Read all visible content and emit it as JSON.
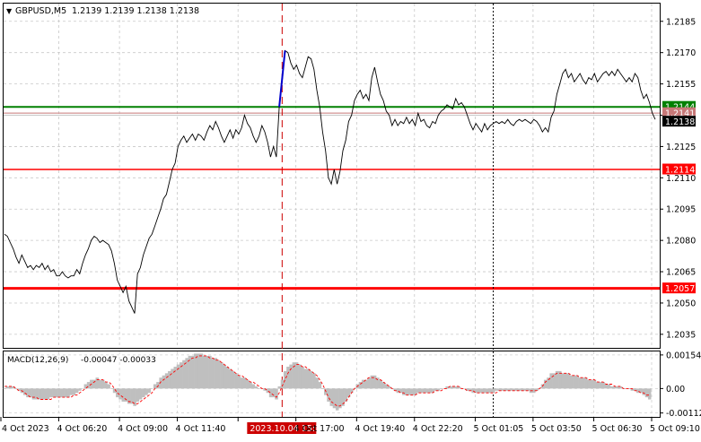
{
  "header": {
    "symbol": "GBPUSD,M5",
    "ohlc": "1.2139 1.2139 1.2138 1.2138"
  },
  "macd_header": {
    "label": "MACD(12,26,9)",
    "values": "-0.00047 -0.00033"
  },
  "colors": {
    "price_line": "#000000",
    "support_green": "#008000",
    "red_level": "#ff0000",
    "gray_level": "#c0c0c0",
    "signal_segment": "#0000cc",
    "macd_hist": "#bfbfbf",
    "macd_signal": "#ff0000"
  },
  "chart_data": [
    {
      "type": "line",
      "title": "GBPUSD,M5",
      "x_ticks": [
        "4 Oct 2023",
        "4 Oct 06:20",
        "4 Oct 09:00",
        "4 Oct 11:40",
        "2023.10.04 15:15",
        "4 Oct 17:00",
        "4 Oct 19:40",
        "4 Oct 22:20",
        "5 Oct 01:05",
        "5 Oct 03:50",
        "5 Oct 06:30",
        "5 Oct 09:10"
      ],
      "highlighted_x_tick": "2023.10.04 15:15",
      "y_ticks": [
        "1.2185",
        "1.2170",
        "1.2155",
        "1.2140",
        "1.2125",
        "1.2110",
        "1.2095",
        "1.2080",
        "1.2065",
        "1.2050",
        "1.2035"
      ],
      "ylim": [
        1.20285,
        1.21935
      ],
      "grid": true,
      "series": [
        {
          "values": [
            1.2083,
            1.2082,
            1.2079,
            1.2076,
            1.2072,
            1.2069,
            1.2073,
            1.207,
            1.2067,
            1.2068,
            1.2066,
            1.2068,
            1.2067,
            1.2069,
            1.2066,
            1.2068,
            1.2065,
            1.2066,
            1.2063,
            1.2063,
            1.2065,
            1.2063,
            1.2062,
            1.2063,
            1.2063,
            1.2066,
            1.2064,
            1.2069,
            1.2073,
            1.2076,
            1.208,
            1.2082,
            1.2081,
            1.2079,
            1.208,
            1.2079,
            1.2078,
            1.2075,
            1.2069,
            1.2061,
            1.2058,
            1.2055,
            1.2058,
            1.2051,
            1.2048,
            1.2045,
            1.2064,
            1.2067,
            1.2073,
            1.2077,
            1.2081,
            1.2083,
            1.2087,
            1.2091,
            1.2095,
            1.21,
            1.2102,
            1.2108,
            1.2114,
            1.2117,
            1.2125,
            1.2128,
            1.213,
            1.2127,
            1.2129,
            1.2131,
            1.2128,
            1.2131,
            1.213,
            1.2128,
            1.2132,
            1.2135,
            1.2133,
            1.2137,
            1.2134,
            1.213,
            1.2127,
            1.213,
            1.2133,
            1.2129,
            1.2133,
            1.2131,
            1.2134,
            1.214,
            1.2136,
            1.2134,
            1.213,
            1.2127,
            1.213,
            1.2135,
            1.2132,
            1.2127,
            1.212,
            1.2125,
            1.212,
            1.2144,
            1.2156,
            1.2171,
            1.217,
            1.2165,
            1.2162,
            1.2164,
            1.216,
            1.2158,
            1.2163,
            1.2168,
            1.2167,
            1.2162,
            1.2152,
            1.2144,
            1.2132,
            1.2123,
            1.211,
            1.2107,
            1.2114,
            1.2107,
            1.2113,
            1.2123,
            1.2128,
            1.2137,
            1.214,
            1.2147,
            1.215,
            1.2152,
            1.2148,
            1.215,
            1.2147,
            1.2158,
            1.2163,
            1.2156,
            1.215,
            1.2147,
            1.2142,
            1.214,
            1.2135,
            1.2138,
            1.2135,
            1.2137,
            1.2136,
            1.2139,
            1.2136,
            1.2138,
            1.2135,
            1.2141,
            1.2137,
            1.2138,
            1.2135,
            1.2134,
            1.2137,
            1.2136,
            1.214,
            1.2142,
            1.2143,
            1.2145,
            1.2144,
            1.2143,
            1.2148,
            1.2145,
            1.2146,
            1.2144,
            1.214,
            1.2136,
            1.2133,
            1.2136,
            1.2134,
            1.2132,
            1.2136,
            1.2133,
            1.2135,
            1.2136,
            1.2137,
            1.2136,
            1.2137,
            1.2136,
            1.2138,
            1.2136,
            1.2135,
            1.2137,
            1.2138,
            1.2137,
            1.2138,
            1.2137,
            1.2136,
            1.2138,
            1.2137,
            1.2135,
            1.2132,
            1.2134,
            1.2132,
            1.2139,
            1.2142,
            1.215,
            1.2155,
            1.216,
            1.2162,
            1.2158,
            1.216,
            1.2156,
            1.2158,
            1.216,
            1.2157,
            1.2155,
            1.2158,
            1.2157,
            1.216,
            1.2156,
            1.2158,
            1.216,
            1.2161,
            1.2159,
            1.2161,
            1.2159,
            1.2162,
            1.216,
            1.2158,
            1.2156,
            1.2158,
            1.2156,
            1.216,
            1.2158,
            1.2152,
            1.2148,
            1.215,
            1.2146,
            1.2141,
            1.2138
          ]
        },
        {
          "name_hidden": true,
          "segment_indices": [
            95,
            97
          ],
          "segment_values": [
            1.2144,
            1.2171
          ]
        }
      ],
      "horizontal_levels": [
        {
          "value": 1.2144,
          "label": "1.2144",
          "color": "#008000",
          "width": 2
        },
        {
          "value": 1.2141,
          "label": "1.2141",
          "color": "#c87878",
          "width": 1
        },
        {
          "value": 1.214,
          "label": "",
          "color": "#c8c8c8",
          "width": 1
        },
        {
          "value": 1.2114,
          "label": "1.2114",
          "color": "#ff0000",
          "width": 1.5
        },
        {
          "value": 1.2057,
          "label": "1.2057",
          "color": "#ff0000",
          "width": 3
        }
      ],
      "current_price": "1.2138",
      "vertical_markers": [
        {
          "index": 96,
          "style": "dashed",
          "color": "#cc0000"
        },
        {
          "index": 169,
          "style": "dotted",
          "color": "#000000"
        }
      ]
    },
    {
      "type": "bar",
      "title": "MACD(12,26,9)",
      "y_ticks": [
        "0.00154",
        "0.00",
        "-0.00112"
      ],
      "ylim": [
        -0.0013,
        0.0017
      ],
      "histogram": [
        0.0,
        0.0001,
        0.0001,
        0.0001,
        0.0,
        -0.0001,
        -0.0002,
        -0.0003,
        -0.0004,
        -0.0004,
        -0.0005,
        -0.0005,
        -0.0005,
        -0.0005,
        -0.0005,
        -0.0005,
        -0.0004,
        -0.0004,
        -0.0004,
        -0.0004,
        -0.0004,
        -0.0004,
        -0.0004,
        -0.0003,
        -0.0003,
        -0.0002,
        -0.0001,
        0.0,
        0.0002,
        0.0003,
        0.0004,
        0.0004,
        0.0005,
        0.0004,
        0.0004,
        0.0003,
        0.0002,
        0.0,
        -0.0002,
        -0.0004,
        -0.0005,
        -0.0006,
        -0.0006,
        -0.0007,
        -0.0007,
        -0.0008,
        -0.0006,
        -0.0005,
        -0.0004,
        -0.0003,
        -0.0002,
        0.0,
        0.0002,
        0.0003,
        0.0005,
        0.0006,
        0.0007,
        0.0008,
        0.0009,
        0.001,
        0.0011,
        0.0012,
        0.0013,
        0.0014,
        0.0015,
        0.0015,
        0.0016,
        0.0016,
        0.0016,
        0.0015,
        0.0015,
        0.0015,
        0.0014,
        0.0014,
        0.0013,
        0.0012,
        0.0011,
        0.001,
        0.0009,
        0.0008,
        0.0007,
        0.0006,
        0.0005,
        0.0005,
        0.0004,
        0.0003,
        0.0002,
        0.0001,
        0.0,
        0.0,
        -0.0001,
        -0.0002,
        -0.0004,
        -0.0004,
        -0.0005,
        0.0001,
        0.0004,
        0.0008,
        0.001,
        0.0011,
        0.0012,
        0.0012,
        0.0011,
        0.001,
        0.0009,
        0.0009,
        0.0008,
        0.0007,
        0.0005,
        0.0003,
        0.0,
        -0.0003,
        -0.0006,
        -0.0008,
        -0.0009,
        -0.001,
        -0.0009,
        -0.0008,
        -0.0006,
        -0.0004,
        -0.0002,
        0.0,
        0.0002,
        0.0003,
        0.0004,
        0.0004,
        0.0005,
        0.0006,
        0.0006,
        0.0005,
        0.0004,
        0.0003,
        0.0002,
        0.0001,
        0.0,
        -0.0001,
        -0.0002,
        -0.0002,
        -0.0003,
        -0.0003,
        -0.0003,
        -0.0003,
        -0.0003,
        -0.0002,
        -0.0002,
        -0.0002,
        -0.0002,
        -0.0002,
        -0.0002,
        -0.0001,
        -0.0001,
        0.0,
        0.0,
        0.0001,
        0.0001,
        0.0001,
        0.0001,
        0.0001,
        0.0,
        0.0,
        -0.0001,
        -0.0001,
        -0.0002,
        -0.0002,
        -0.0002,
        -0.0002,
        -0.0002,
        -0.0002,
        -0.0002,
        -0.0002,
        -0.0001,
        -0.0001,
        -0.0001,
        -0.0001,
        -0.0001,
        -0.0001,
        -0.0001,
        -0.0001,
        -0.0001,
        -0.0001,
        -0.0001,
        -0.0001,
        -0.0002,
        -0.0002,
        -0.0001,
        0.0,
        0.0002,
        0.0004,
        0.0005,
        0.0007,
        0.0007,
        0.0008,
        0.0008,
        0.0007,
        0.0007,
        0.0007,
        0.0006,
        0.0006,
        0.0006,
        0.0005,
        0.0005,
        0.0005,
        0.0004,
        0.0004,
        0.0004,
        0.0003,
        0.0003,
        0.0003,
        0.0002,
        0.0002,
        0.0001,
        0.0001,
        0.0001,
        0.0001,
        0.0,
        0.0,
        0.0,
        -0.0001,
        -0.0001,
        -0.0002,
        -0.0002,
        -0.0003,
        -0.0004,
        -0.0005
      ],
      "signal": [
        0.0001,
        0.0001,
        0.0001,
        0.0001,
        0.0,
        -0.0001,
        -0.0001,
        -0.0002,
        -0.0003,
        -0.0004,
        -0.0004,
        -0.0004,
        -0.0005,
        -0.0005,
        -0.0005,
        -0.0005,
        -0.0005,
        -0.0004,
        -0.0004,
        -0.0004,
        -0.0004,
        -0.0004,
        -0.0004,
        -0.0004,
        -0.0003,
        -0.0003,
        -0.0002,
        -0.0001,
        0.0,
        0.0001,
        0.0002,
        0.0003,
        0.0004,
        0.0004,
        0.0004,
        0.0003,
        0.0003,
        0.0002,
        0.0,
        -0.0002,
        -0.0003,
        -0.0004,
        -0.0005,
        -0.0006,
        -0.0006,
        -0.0007,
        -0.0007,
        -0.0006,
        -0.0005,
        -0.0004,
        -0.0003,
        -0.0002,
        0.0,
        0.0001,
        0.0003,
        0.0004,
        0.0005,
        0.0006,
        0.0007,
        0.0008,
        0.0009,
        0.001,
        0.0011,
        0.0012,
        0.0013,
        0.0014,
        0.0014,
        0.0015,
        0.0015,
        0.0015,
        0.0015,
        0.0014,
        0.0014,
        0.0013,
        0.0013,
        0.0012,
        0.0011,
        0.001,
        0.0009,
        0.0008,
        0.0007,
        0.0006,
        0.0006,
        0.0005,
        0.0004,
        0.0003,
        0.0003,
        0.0002,
        0.0001,
        0.0,
        0.0,
        -0.0001,
        -0.0002,
        -0.0003,
        -0.0004,
        -0.0002,
        0.0001,
        0.0004,
        0.0007,
        0.0009,
        0.001,
        0.0011,
        0.0011,
        0.001,
        0.001,
        0.0009,
        0.0008,
        0.0007,
        0.0006,
        0.0004,
        0.0002,
        -0.0001,
        -0.0004,
        -0.0006,
        -0.0007,
        -0.0008,
        -0.0008,
        -0.0007,
        -0.0006,
        -0.0004,
        -0.0002,
        0.0,
        0.0001,
        0.0002,
        0.0003,
        0.0004,
        0.0005,
        0.0005,
        0.0005,
        0.0004,
        0.0004,
        0.0003,
        0.0002,
        0.0001,
        0.0,
        -0.0001,
        -0.0001,
        -0.0002,
        -0.0002,
        -0.0003,
        -0.0003,
        -0.0003,
        -0.0003,
        -0.0002,
        -0.0002,
        -0.0002,
        -0.0002,
        -0.0002,
        -0.0002,
        -0.0001,
        -0.0001,
        -0.0001,
        0.0,
        0.0,
        0.0001,
        0.0001,
        0.0001,
        0.0001,
        0.0,
        0.0,
        -0.0001,
        -0.0001,
        -0.0001,
        -0.0002,
        -0.0002,
        -0.0002,
        -0.0002,
        -0.0002,
        -0.0002,
        -0.0002,
        -0.0002,
        -0.0001,
        -0.0001,
        -0.0001,
        -0.0001,
        -0.0001,
        -0.0001,
        -0.0001,
        -0.0001,
        -0.0001,
        -0.0001,
        -0.0001,
        -0.0001,
        -0.0001,
        -0.0001,
        0.0,
        0.0001,
        0.0003,
        0.0004,
        0.0005,
        0.0006,
        0.0007,
        0.0007,
        0.0007,
        0.0007,
        0.0007,
        0.0006,
        0.0006,
        0.0006,
        0.0005,
        0.0005,
        0.0005,
        0.0004,
        0.0004,
        0.0004,
        0.0003,
        0.0003,
        0.0003,
        0.0002,
        0.0002,
        0.0002,
        0.0001,
        0.0001,
        0.0001,
        0.0,
        0.0,
        0.0,
        0.0,
        -0.0001,
        -0.0001,
        -0.0002,
        -0.0002,
        -0.0003,
        -0.0003
      ]
    }
  ]
}
